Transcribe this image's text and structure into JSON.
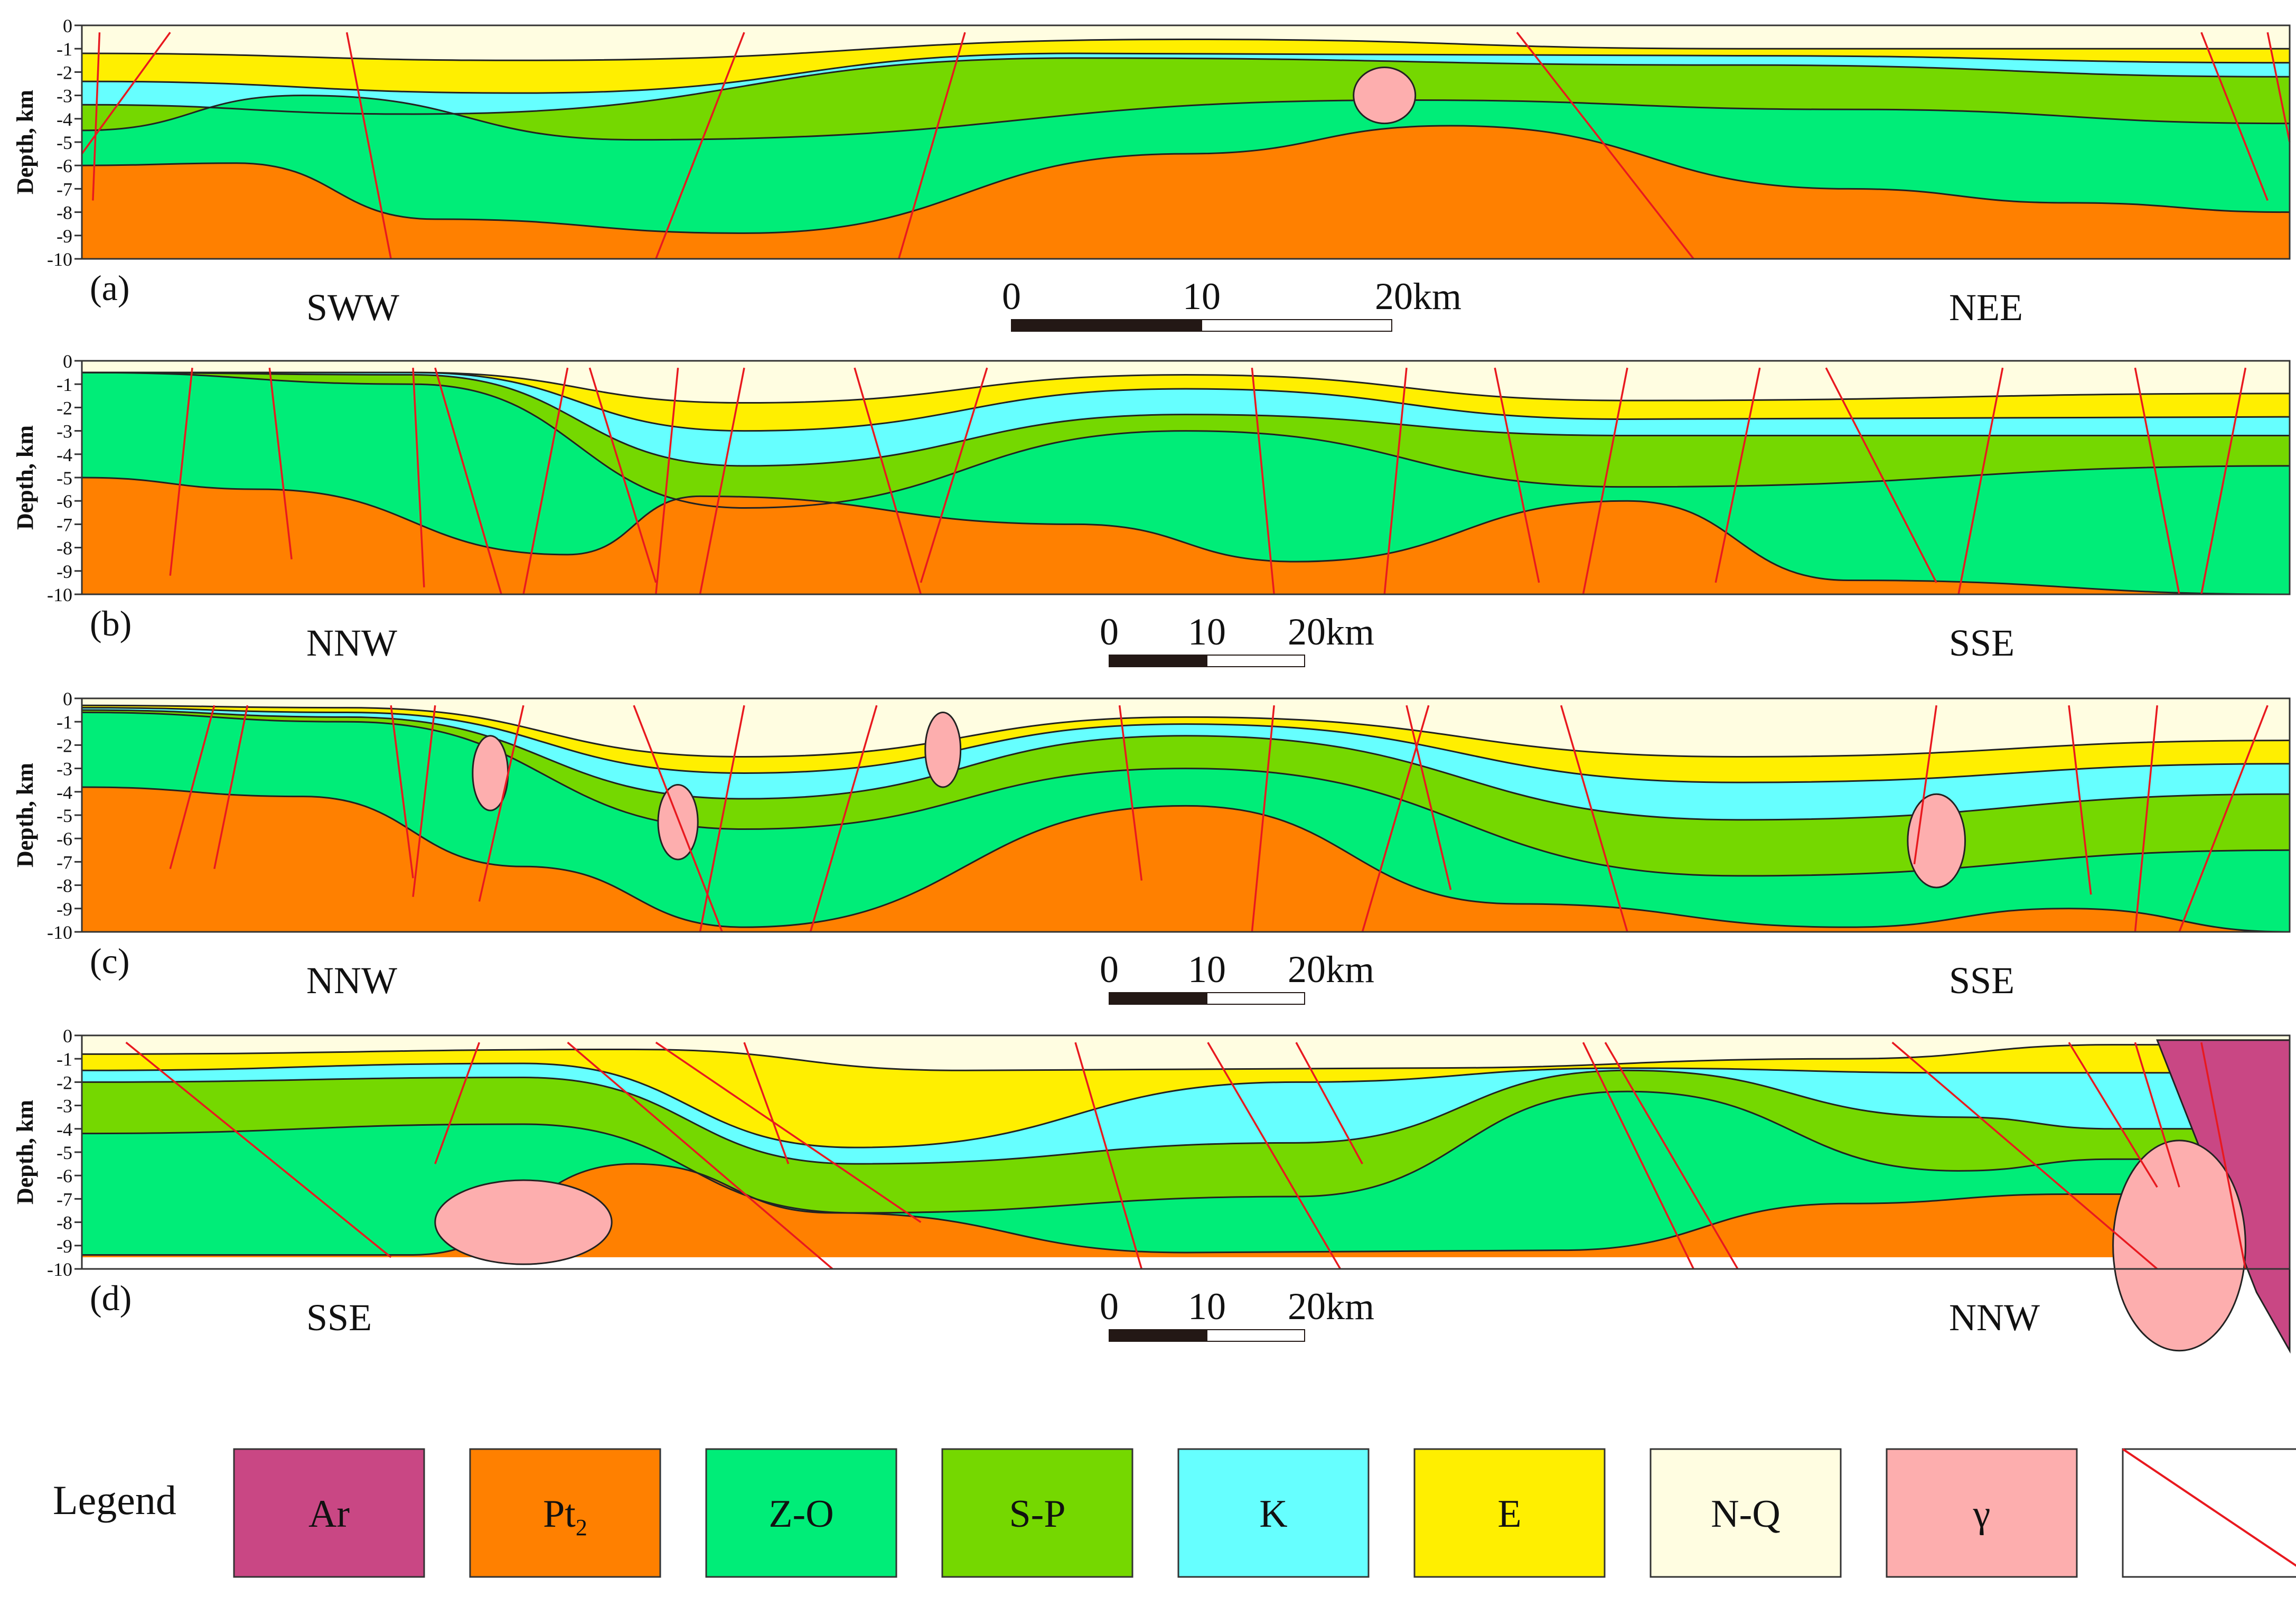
{
  "colors": {
    "Ar": "#c94784",
    "Pt2": "#ff8000",
    "Z-O": "#00ed78",
    "S-P": "#75d800",
    "K": "#66ffff",
    "E": "#ffef00",
    "N-Q": "#fffde1",
    "gamma": "#fdaeae",
    "fault": "#e8191f",
    "boundary": "#222222"
  },
  "axis": {
    "ylabel": "Depth, km",
    "ticks": [
      "0",
      "-1",
      "-2",
      "-3",
      "-4",
      "-5",
      "-6",
      "-7",
      "-8",
      "-9",
      "-10"
    ]
  },
  "panels": [
    {
      "id": "a",
      "label": "(a)",
      "left_direction": "SWW",
      "right_direction": "NEE",
      "scale": [
        "0",
        "10",
        "20km"
      ]
    },
    {
      "id": "b",
      "label": "(b)",
      "left_direction": "NNW",
      "right_direction": "SSE",
      "scale": [
        "0",
        "10",
        "20km"
      ]
    },
    {
      "id": "c",
      "label": "(c)",
      "left_direction": "NNW",
      "right_direction": "SSE",
      "scale": [
        "0",
        "10",
        "20km"
      ]
    },
    {
      "id": "d",
      "label": "(d)",
      "left_direction": "SSE",
      "right_direction": "NNW",
      "scale": [
        "0",
        "10",
        "20km"
      ]
    }
  ],
  "legend": {
    "title": "Legend",
    "items": [
      {
        "key": "Ar",
        "label": "Ar",
        "sub": ""
      },
      {
        "key": "Pt2",
        "label": "Pt",
        "sub": "2"
      },
      {
        "key": "Z-O",
        "label": "Z-O",
        "sub": ""
      },
      {
        "key": "S-P",
        "label": "S-P",
        "sub": ""
      },
      {
        "key": "K",
        "label": "K",
        "sub": ""
      },
      {
        "key": "E",
        "label": "E",
        "sub": ""
      },
      {
        "key": "N-Q",
        "label": "N-Q",
        "sub": ""
      },
      {
        "key": "gamma",
        "label": "γ",
        "sub": ""
      },
      {
        "key": "fault",
        "label": "",
        "sub": ""
      }
    ]
  }
}
